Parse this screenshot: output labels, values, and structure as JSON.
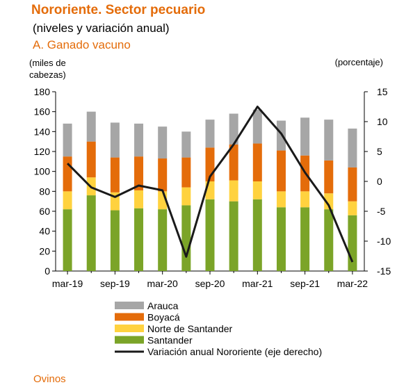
{
  "title": "Nororiente. Sector pecuario",
  "subtitle": "(niveles y variación anual)",
  "panel_label": "A. Ganado vacuno",
  "cut_text": "Ovinos",
  "chart_data": {
    "type": "bar",
    "stacked": true,
    "categories": [
      "mar-19",
      "jun-19",
      "sep-19",
      "dic-19",
      "mar-20",
      "jun-20",
      "sep-20",
      "dic-20",
      "mar-21",
      "jun-21",
      "sep-21",
      "dic-21",
      "mar-22"
    ],
    "x_tick_labels": [
      "mar-19",
      "sep-19",
      "mar-20",
      "sep-20",
      "mar-21",
      "sep-21",
      "mar-22"
    ],
    "ylabel_left": "(miles de cabezas)",
    "ylabel_right": "(porcentaje)",
    "ylim_left": [
      0,
      180
    ],
    "yticks_left": [
      0,
      20,
      40,
      60,
      80,
      100,
      120,
      140,
      160,
      180
    ],
    "ylim_right": [
      -15,
      15
    ],
    "yticks_right": [
      -15,
      -10,
      -5,
      0,
      5,
      10,
      15
    ],
    "grid": false,
    "legend_position": "bottom",
    "series": [
      {
        "name": "Santander",
        "color": "#7BA428",
        "values": [
          62,
          76,
          61,
          63,
          62,
          66,
          72,
          70,
          72,
          64,
          64,
          62,
          56
        ]
      },
      {
        "name": "Norte de Santander",
        "color": "#FFD23F",
        "values": [
          18,
          18,
          18,
          18,
          18,
          18,
          18,
          21,
          18,
          16,
          16,
          16,
          14
        ]
      },
      {
        "name": "Boyacá",
        "color": "#E46C0A",
        "values": [
          35,
          36,
          35,
          34,
          33,
          30,
          34,
          36,
          38,
          41,
          36,
          33,
          34
        ]
      },
      {
        "name": "Arauca",
        "color": "#A6A6A6",
        "values": [
          33,
          30,
          35,
          33,
          32,
          26,
          28,
          31,
          34,
          30,
          38,
          41,
          39
        ]
      }
    ],
    "line": {
      "name": "Variación anual Nororiente (eje derecho)",
      "color": "#1A1A1A",
      "axis": "right",
      "values": [
        3.0,
        -1.0,
        -2.6,
        -0.7,
        -1.5,
        -12.6,
        0.8,
        6.2,
        12.5,
        8.0,
        1.5,
        -4.0,
        -13.5
      ]
    }
  }
}
